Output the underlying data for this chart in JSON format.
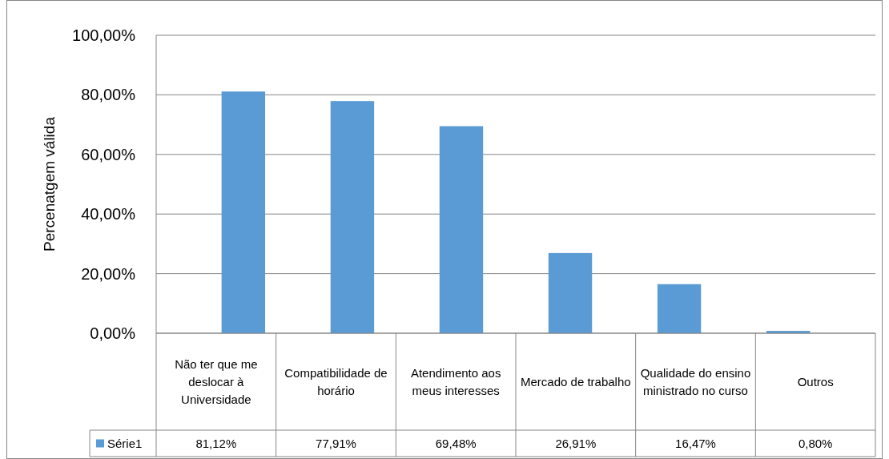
{
  "chart_data": {
    "type": "bar",
    "ylabel": "Percenatgem válida",
    "categories": [
      "Não ter que me deslocar à Universidade",
      "Compatibilidade de horário",
      "Atendimento aos meus interesses",
      "Mercado de trabalho",
      "Qualidade do ensino ministrado no curso",
      "Outros"
    ],
    "series": [
      {
        "name": "Série1",
        "color": "#5b9bd5",
        "values": [
          81.12,
          77.91,
          69.48,
          26.91,
          16.47,
          0.8
        ],
        "value_labels": [
          "81,12%",
          "77,91%",
          "69,48%",
          "26,91%",
          "16,47%",
          "0,80%"
        ]
      }
    ],
    "ylim": [
      0,
      100
    ],
    "yticks": [
      {
        "value": 0,
        "label": "0,00%"
      },
      {
        "value": 20,
        "label": "20,00%"
      },
      {
        "value": 40,
        "label": "40,00%"
      },
      {
        "value": 60,
        "label": "60,00%"
      },
      {
        "value": 80,
        "label": "80,00%"
      },
      {
        "value": 100,
        "label": "100,00%"
      }
    ],
    "grid": true,
    "legend": "bottom"
  }
}
